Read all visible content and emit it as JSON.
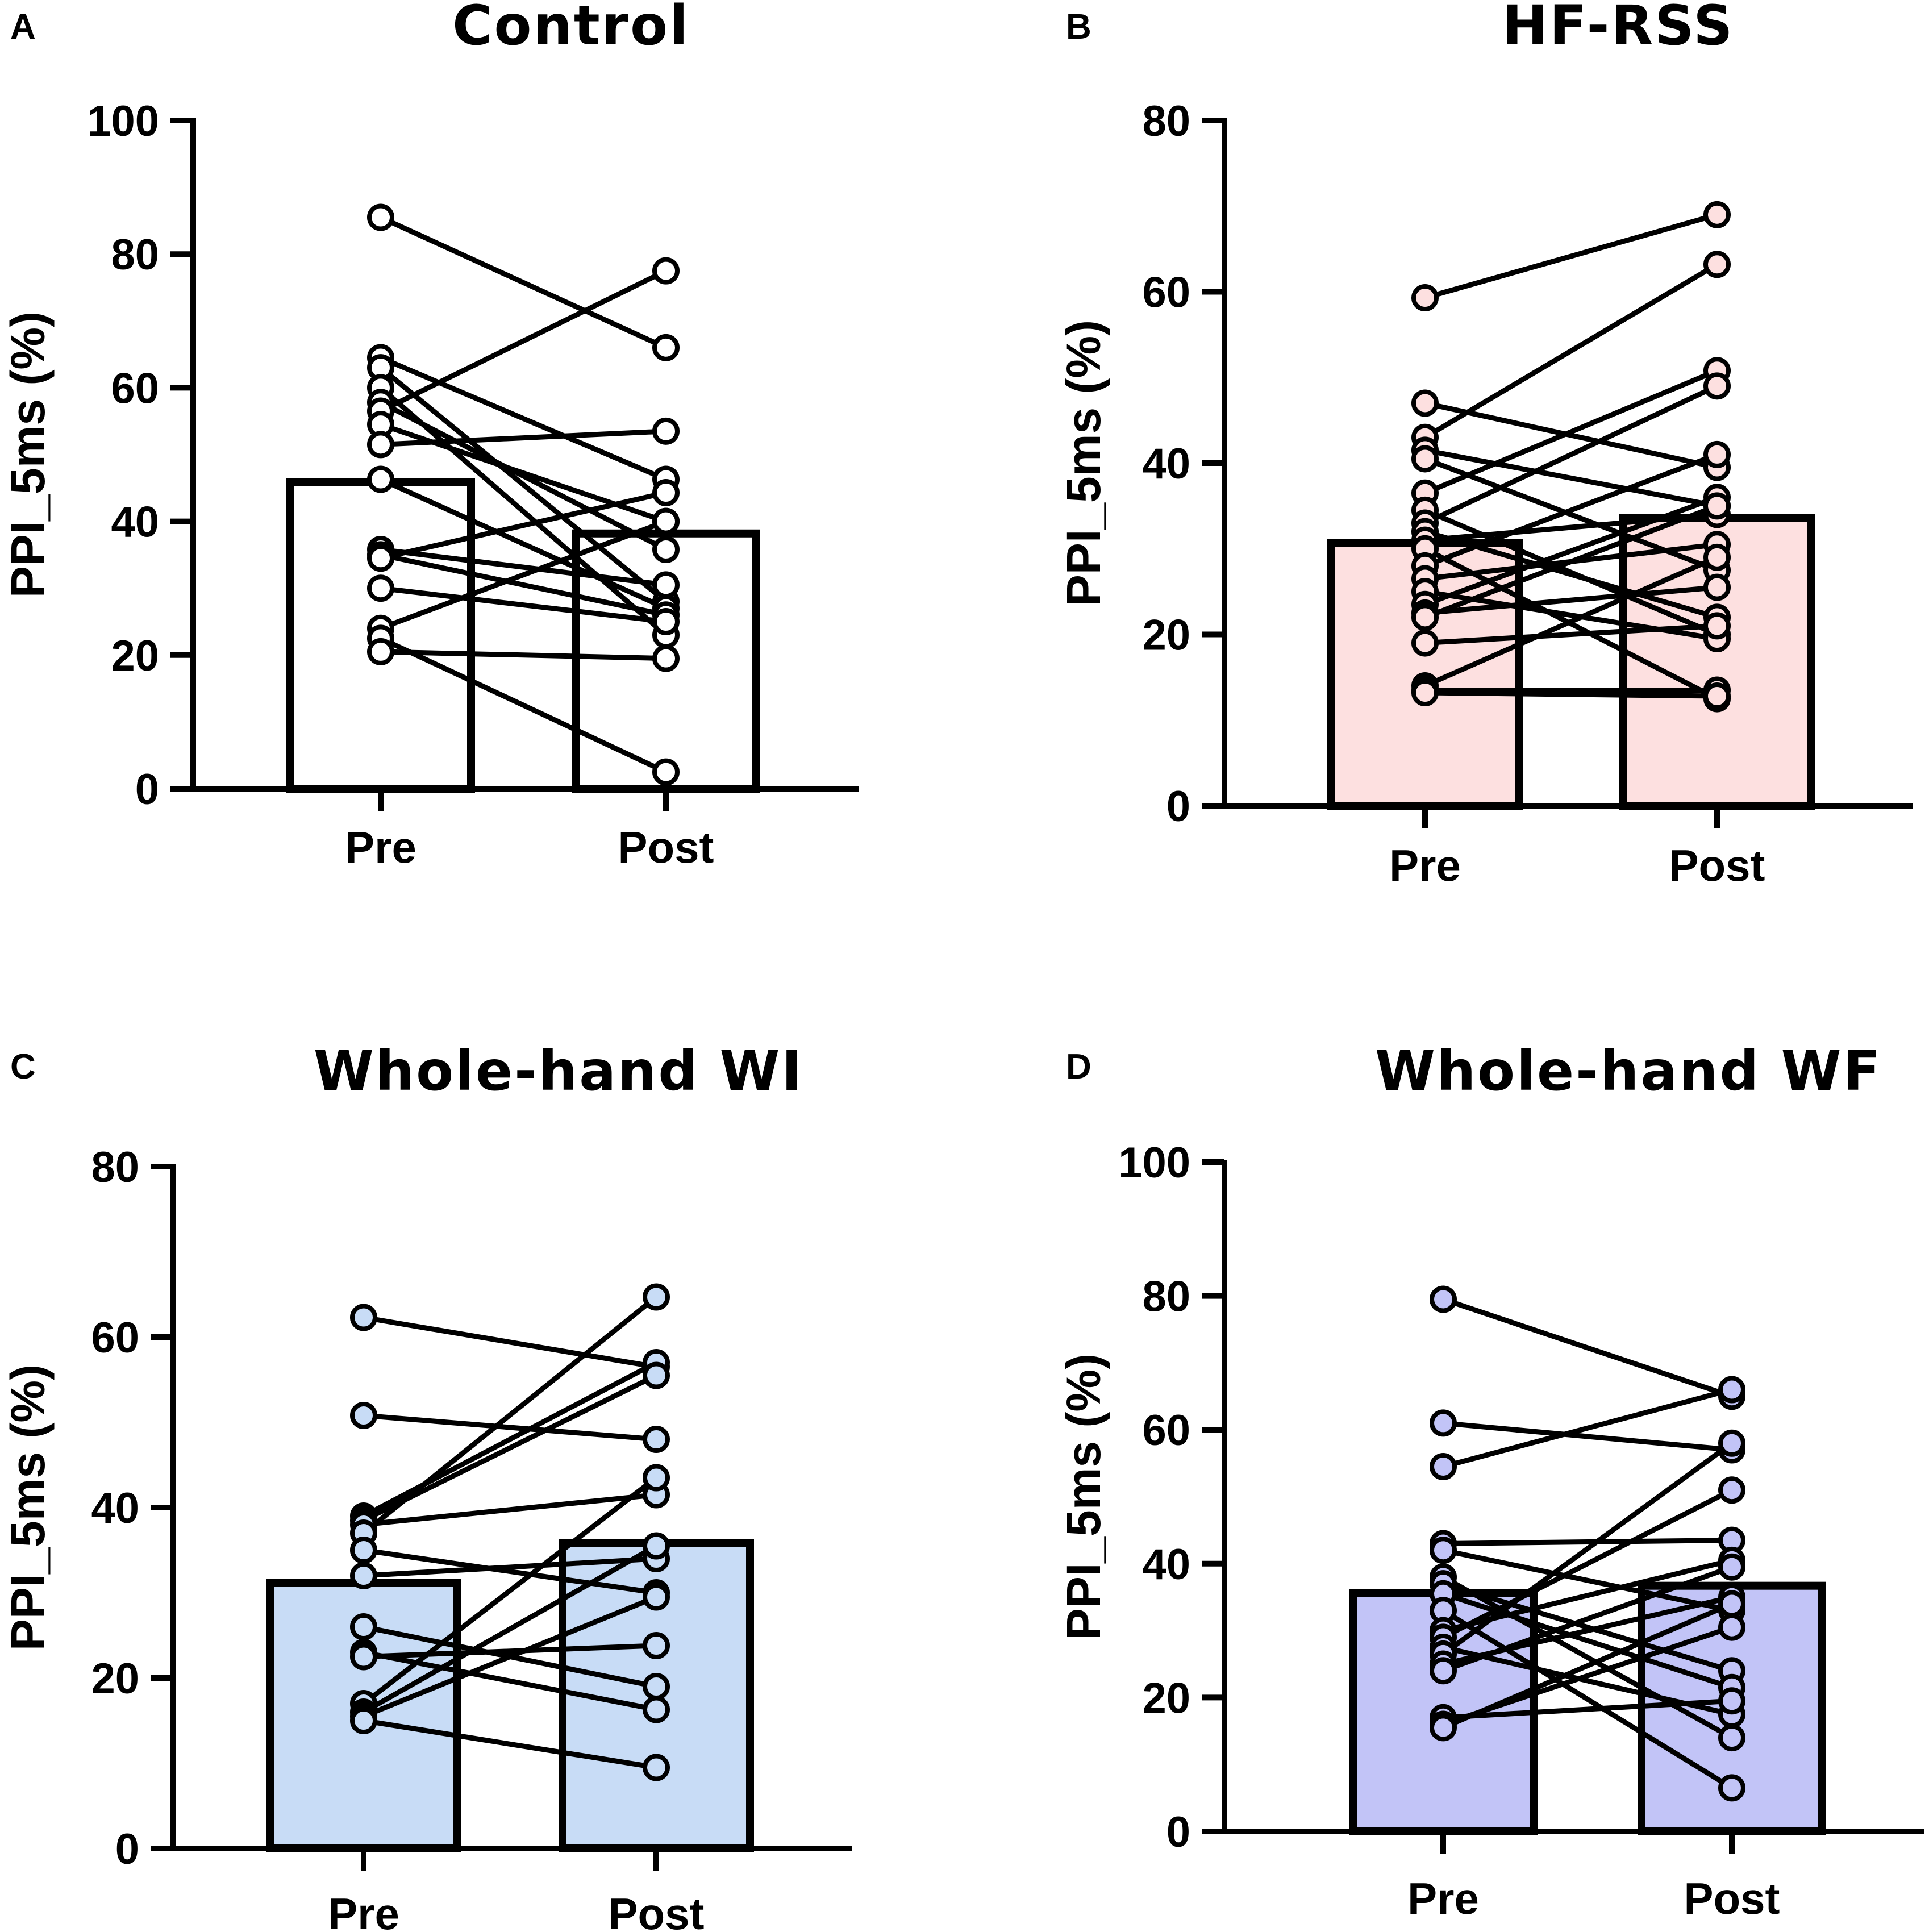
{
  "chart_data": [
    {
      "panel": "A",
      "type": "bar",
      "title": "Control",
      "ylabel": "PPI_5ms (%)",
      "xlabel": "",
      "categories": [
        "Pre",
        "Post"
      ],
      "ylim": [
        0,
        100
      ],
      "yticks": [
        0,
        20,
        40,
        60,
        80,
        100
      ],
      "values": [
        45.9,
        38.2
      ],
      "bar_color": "#ffffff",
      "point_color": "#ffffff",
      "pairs": [
        [
          85.5,
          66.0
        ],
        [
          64.5,
          46.3
        ],
        [
          63.0,
          28.0
        ],
        [
          60.0,
          23.0
        ],
        [
          57.8,
          35.8
        ],
        [
          56.5,
          77.5
        ],
        [
          54.5,
          40.0
        ],
        [
          51.5,
          53.5
        ],
        [
          46.3,
          27.0
        ],
        [
          35.8,
          30.5
        ],
        [
          35.0,
          26.0
        ],
        [
          34.5,
          44.3
        ],
        [
          30.0,
          25.0
        ],
        [
          24.0,
          40.0
        ],
        [
          22.5,
          2.5
        ],
        [
          20.5,
          19.5
        ]
      ]
    },
    {
      "panel": "B",
      "type": "bar",
      "title": "HF-RSS",
      "ylabel": "PPI_5ms (%)",
      "xlabel": "",
      "categories": [
        "Pre",
        "Post"
      ],
      "ylim": [
        0,
        80
      ],
      "yticks": [
        0,
        20,
        40,
        60,
        80
      ],
      "values": [
        30.7,
        33.6
      ],
      "bar_color": "#fde0e0",
      "point_color": "#fde0e0",
      "pairs": [
        [
          59.3,
          69.0
        ],
        [
          47.0,
          39.5
        ],
        [
          43.0,
          63.2
        ],
        [
          41.5,
          35.0
        ],
        [
          40.5,
          27.5
        ],
        [
          36.5,
          50.8
        ],
        [
          34.5,
          20.0
        ],
        [
          33.0,
          49.0
        ],
        [
          32.0,
          22.0
        ],
        [
          31.0,
          34.0
        ],
        [
          30.0,
          12.5
        ],
        [
          28.0,
          41.0
        ],
        [
          26.5,
          30.5
        ],
        [
          25.0,
          19.5
        ],
        [
          23.5,
          36.0
        ],
        [
          22.5,
          25.5
        ],
        [
          22.0,
          35.0
        ],
        [
          19.0,
          21.0
        ],
        [
          14.0,
          29.0
        ],
        [
          13.5,
          13.5
        ],
        [
          13.2,
          12.8
        ]
      ]
    },
    {
      "panel": "C",
      "type": "bar",
      "title": "Whole-hand WI",
      "ylabel": "PPI_5ms (%)",
      "xlabel": "",
      "categories": [
        "Pre",
        "Post"
      ],
      "ylim": [
        0,
        80
      ],
      "yticks": [
        0,
        20,
        40,
        60,
        80
      ],
      "values": [
        31.2,
        35.8
      ],
      "bar_color": "#c8dcf6",
      "point_color": "#c8dcf6",
      "pairs": [
        [
          62.3,
          56.5
        ],
        [
          50.8,
          48.0
        ],
        [
          39.0,
          57.0
        ],
        [
          38.5,
          55.5
        ],
        [
          38.0,
          41.5
        ],
        [
          37.0,
          64.7
        ],
        [
          35.0,
          30.0
        ],
        [
          32.0,
          34.0
        ],
        [
          26.0,
          19.0
        ],
        [
          23.0,
          16.3
        ],
        [
          22.5,
          23.8
        ],
        [
          17.0,
          43.5
        ],
        [
          16.0,
          35.5
        ],
        [
          15.5,
          29.5
        ],
        [
          15.0,
          9.5
        ]
      ]
    },
    {
      "panel": "D",
      "type": "bar",
      "title": "Whole-hand WF",
      "ylabel": "PPI_5ms (%)",
      "xlabel": "",
      "categories": [
        "Pre",
        "Post"
      ],
      "ylim": [
        0,
        100
      ],
      "yticks": [
        0,
        20,
        40,
        60,
        80,
        100
      ],
      "values": [
        35.6,
        36.7
      ],
      "bar_color": "#c2c4f7",
      "point_color": "#c2c4f7",
      "pairs": [
        [
          79.5,
          65.0
        ],
        [
          61.0,
          57.0
        ],
        [
          54.5,
          66.0
        ],
        [
          43.0,
          43.5
        ],
        [
          42.0,
          33.0
        ],
        [
          38.0,
          14.0
        ],
        [
          37.0,
          24.0
        ],
        [
          35.5,
          21.5
        ],
        [
          33.0,
          6.5
        ],
        [
          30.0,
          40.5
        ],
        [
          29.0,
          51.0
        ],
        [
          27.5,
          17.5
        ],
        [
          26.5,
          58.0
        ],
        [
          25.0,
          35.0
        ],
        [
          24.0,
          39.5
        ],
        [
          17.0,
          19.5
        ],
        [
          16.0,
          30.5
        ],
        [
          15.5,
          34.0
        ]
      ]
    }
  ]
}
